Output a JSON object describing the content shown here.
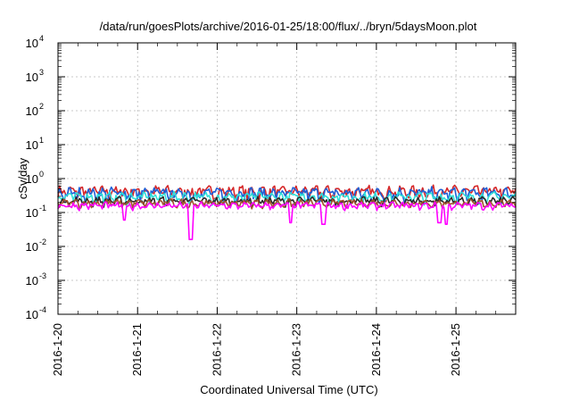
{
  "chart_data": {
    "type": "line",
    "title": "/data/run/goesPlots/archive/2016-01-25/18:00/flux/../bryn/5daysMoon.plot",
    "xlabel": "Coordinated Universal Time (UTC)",
    "ylabel": "cSv/day",
    "yscale": "log",
    "ylim": [
      0.0001,
      10000
    ],
    "xlim": [
      "2016-01-20",
      "2016-01-25 18:00"
    ],
    "x_ticks": [
      "2016-1-20",
      "2016-1-21",
      "2016-1-22",
      "2016-1-23",
      "2016-1-24",
      "2016-1-25"
    ],
    "y_ticks": [
      {
        "base": "10",
        "exp": "-4"
      },
      {
        "base": "10",
        "exp": "-3"
      },
      {
        "base": "10",
        "exp": "-2"
      },
      {
        "base": "10",
        "exp": "-1"
      },
      {
        "base": "10",
        "exp": "0"
      },
      {
        "base": "10",
        "exp": "1"
      },
      {
        "base": "10",
        "exp": "2"
      },
      {
        "base": "10",
        "exp": "3"
      },
      {
        "base": "10",
        "exp": "4"
      }
    ],
    "grid": true,
    "series": [
      {
        "color": "#d62728",
        "level": 0.42,
        "spread": 0.14
      },
      {
        "color": "#1f5fd6",
        "level": 0.37,
        "spread": 0.13
      },
      {
        "color": "#2fe0d8",
        "level": 0.29,
        "spread": 0.08
      },
      {
        "color": "#2a2a2a",
        "level": 0.22,
        "spread": 0.05
      },
      {
        "color": "#a0522d",
        "level": 0.19,
        "spread": 0.04
      },
      {
        "color": "#ff00ff",
        "level": 0.16,
        "spread": 0.03
      }
    ],
    "dips": [
      {
        "date": "2016-01-20 20:00",
        "value": 0.06
      },
      {
        "date": "2016-01-21 16:00",
        "value": 0.016
      },
      {
        "date": "2016-01-22 22:00",
        "value": 0.05
      },
      {
        "date": "2016-01-23 08:00",
        "value": 0.045
      },
      {
        "date": "2016-01-24 19:00",
        "value": 0.05
      },
      {
        "date": "2016-01-24 21:00",
        "value": 0.045
      }
    ]
  }
}
